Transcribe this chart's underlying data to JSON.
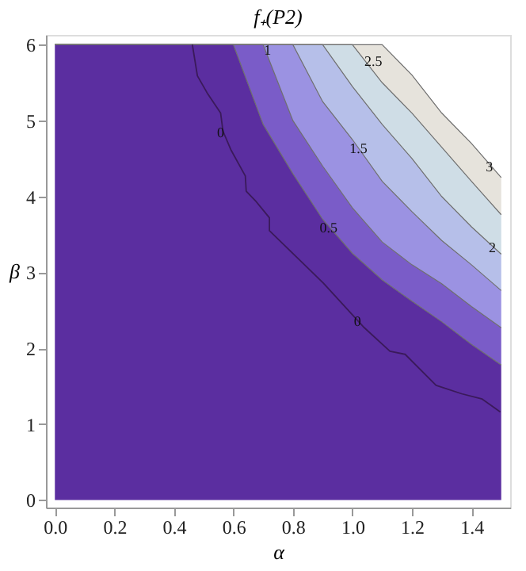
{
  "chart_data": {
    "type": "area",
    "stacked": true,
    "title": "f₊(P2)",
    "xlabel": "α",
    "ylabel": "β",
    "xlim": [
      -0.03,
      1.53
    ],
    "ylim": [
      -0.1,
      6.13
    ],
    "xticks": [
      {
        "value": 0,
        "label": "0.0"
      },
      0.2,
      0.4,
      0.6,
      0.8,
      {
        "value": 1,
        "label": "1.0"
      },
      1.2,
      1.4
    ],
    "yticks": [
      0,
      1,
      2,
      3,
      4,
      5,
      6
    ],
    "grid": false,
    "x": [
      0,
      0.6,
      0.7,
      0.8,
      0.9,
      1.0,
      1.1,
      1.2,
      1.3,
      1.4,
      1.5
    ],
    "series": [
      {
        "color": "#5b2ea0",
        "values": [
          6,
          6,
          4.95,
          4.3,
          3.7,
          3.25,
          2.9,
          2.62,
          2.35,
          2.05,
          1.78
        ]
      },
      {
        "color": "#7a5cc8",
        "values": [
          0,
          0,
          1.05,
          0.7,
          0.7,
          0.6,
          0.5,
          0.48,
          0.5,
          0.5,
          0.49
        ]
      },
      {
        "color": "#9b92e2",
        "values": [
          0,
          0,
          0,
          1.0,
          0.85,
          0.9,
          0.8,
          0.7,
          0.57,
          0.55,
          0.49
        ]
      },
      {
        "color": "#b6bfe9",
        "values": [
          0,
          0,
          0,
          0,
          0.75,
          0.7,
          0.75,
          0.7,
          0.58,
          0.5,
          0.48
        ]
      },
      {
        "color": "#cfdde6",
        "values": [
          0,
          0,
          0,
          0,
          0,
          0.55,
          0.55,
          0.6,
          0.65,
          0.6,
          0.52
        ]
      },
      {
        "color": "#e6e3dc",
        "values": [
          0,
          0,
          0,
          0,
          0,
          0,
          0.5,
          0.5,
          0.45,
          0.5,
          0.49
        ]
      },
      {
        "type": "line",
        "color": "#3a1a5a",
        "x": [
          0.462,
          0.479,
          0.514,
          0.557,
          0.565,
          0.591,
          0.64,
          0.643,
          0.677,
          0.721,
          0.721,
          0.902,
          1.04,
          1.126,
          1.177,
          1.281,
          1.367,
          1.436,
          1.497
        ],
        "values": [
          6.0,
          5.59,
          5.35,
          5.1,
          4.86,
          4.62,
          4.27,
          4.07,
          3.93,
          3.72,
          3.55,
          2.86,
          2.27,
          1.96,
          1.92,
          1.51,
          1.4,
          1.33,
          1.16
        ]
      }
    ],
    "annotations": [
      {
        "text": "0",
        "x": 0.557,
        "y": 4.84
      },
      {
        "text": "0",
        "x": 1.017,
        "y": 2.36
      },
      {
        "text": "0.5",
        "x": 0.92,
        "y": 3.59
      },
      {
        "text": "1",
        "x": 0.715,
        "y": 5.93
      },
      {
        "text": "1.5",
        "x": 1.02,
        "y": 4.63
      },
      {
        "text": "2",
        "x": 1.47,
        "y": 3.33
      },
      {
        "text": "2.5",
        "x": 1.07,
        "y": 5.79
      },
      {
        "text": "3",
        "x": 1.46,
        "y": 4.4
      }
    ]
  }
}
